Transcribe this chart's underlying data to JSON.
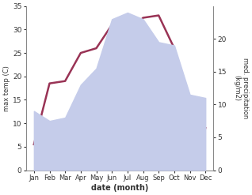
{
  "months": [
    "Jan",
    "Feb",
    "Mar",
    "Apr",
    "May",
    "Jun",
    "Jul",
    "Aug",
    "Sep",
    "Oct",
    "Nov",
    "Dec"
  ],
  "month_x": [
    1,
    2,
    3,
    4,
    5,
    6,
    7,
    8,
    9,
    10,
    11,
    12
  ],
  "temperature": [
    5.5,
    18.5,
    19.0,
    25.0,
    26.0,
    31.0,
    29.0,
    32.5,
    33.0,
    26.0,
    9.5,
    9.0
  ],
  "precipitation": [
    9.0,
    7.5,
    8.0,
    13.0,
    15.5,
    23.0,
    24.0,
    23.0,
    19.5,
    19.0,
    11.5,
    11.0
  ],
  "temp_color": "#993355",
  "precip_fill_color": "#c5ccea",
  "temp_ylim": [
    0,
    35
  ],
  "precip_ylim": [
    0,
    25
  ],
  "temp_yticks": [
    0,
    5,
    10,
    15,
    20,
    25,
    30,
    35
  ],
  "precip_yticks": [
    0,
    5,
    10,
    15,
    20
  ],
  "xlabel": "date (month)",
  "ylabel_left": "max temp (C)",
  "ylabel_right": "med. precipitation\n(kg/m2)",
  "bg_color": "#ffffff",
  "xlim": [
    0.5,
    12.5
  ]
}
